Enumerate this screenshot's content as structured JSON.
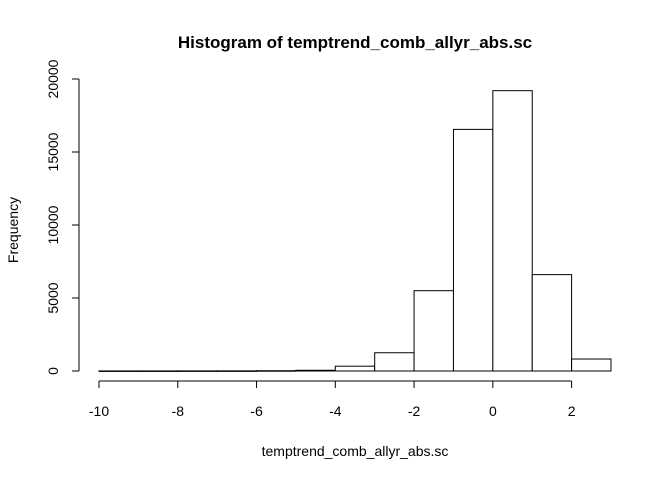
{
  "chart_data": {
    "type": "bar",
    "title": "Histogram of temptrend_comb_allyr_abs.sc",
    "xlabel": "temptrend_comb_allyr_abs.sc",
    "ylabel": "Frequency",
    "bins": [
      {
        "from": -10,
        "to": -9,
        "count": 5
      },
      {
        "from": -9,
        "to": -8,
        "count": 5
      },
      {
        "from": -8,
        "to": -7,
        "count": 8
      },
      {
        "from": -7,
        "to": -6,
        "count": 10
      },
      {
        "from": -6,
        "to": -5,
        "count": 20
      },
      {
        "from": -5,
        "to": -4,
        "count": 50
      },
      {
        "from": -4,
        "to": -3,
        "count": 330
      },
      {
        "from": -3,
        "to": -2,
        "count": 1250
      },
      {
        "from": -2,
        "to": -1,
        "count": 5500
      },
      {
        "from": -1,
        "to": 0,
        "count": 16550
      },
      {
        "from": 0,
        "to": 1,
        "count": 19200
      },
      {
        "from": 1,
        "to": 2,
        "count": 6600
      },
      {
        "from": 2,
        "to": 3,
        "count": 820
      }
    ],
    "x_ticks": [
      "-10",
      "-8",
      "-6",
      "-4",
      "-2",
      "0",
      "2"
    ],
    "y_ticks": [
      "0",
      "5000",
      "10000",
      "15000",
      "20000"
    ],
    "xlim": [
      -10,
      3
    ],
    "ylim": [
      0,
      20000
    ],
    "grid": false,
    "legend": "none"
  }
}
